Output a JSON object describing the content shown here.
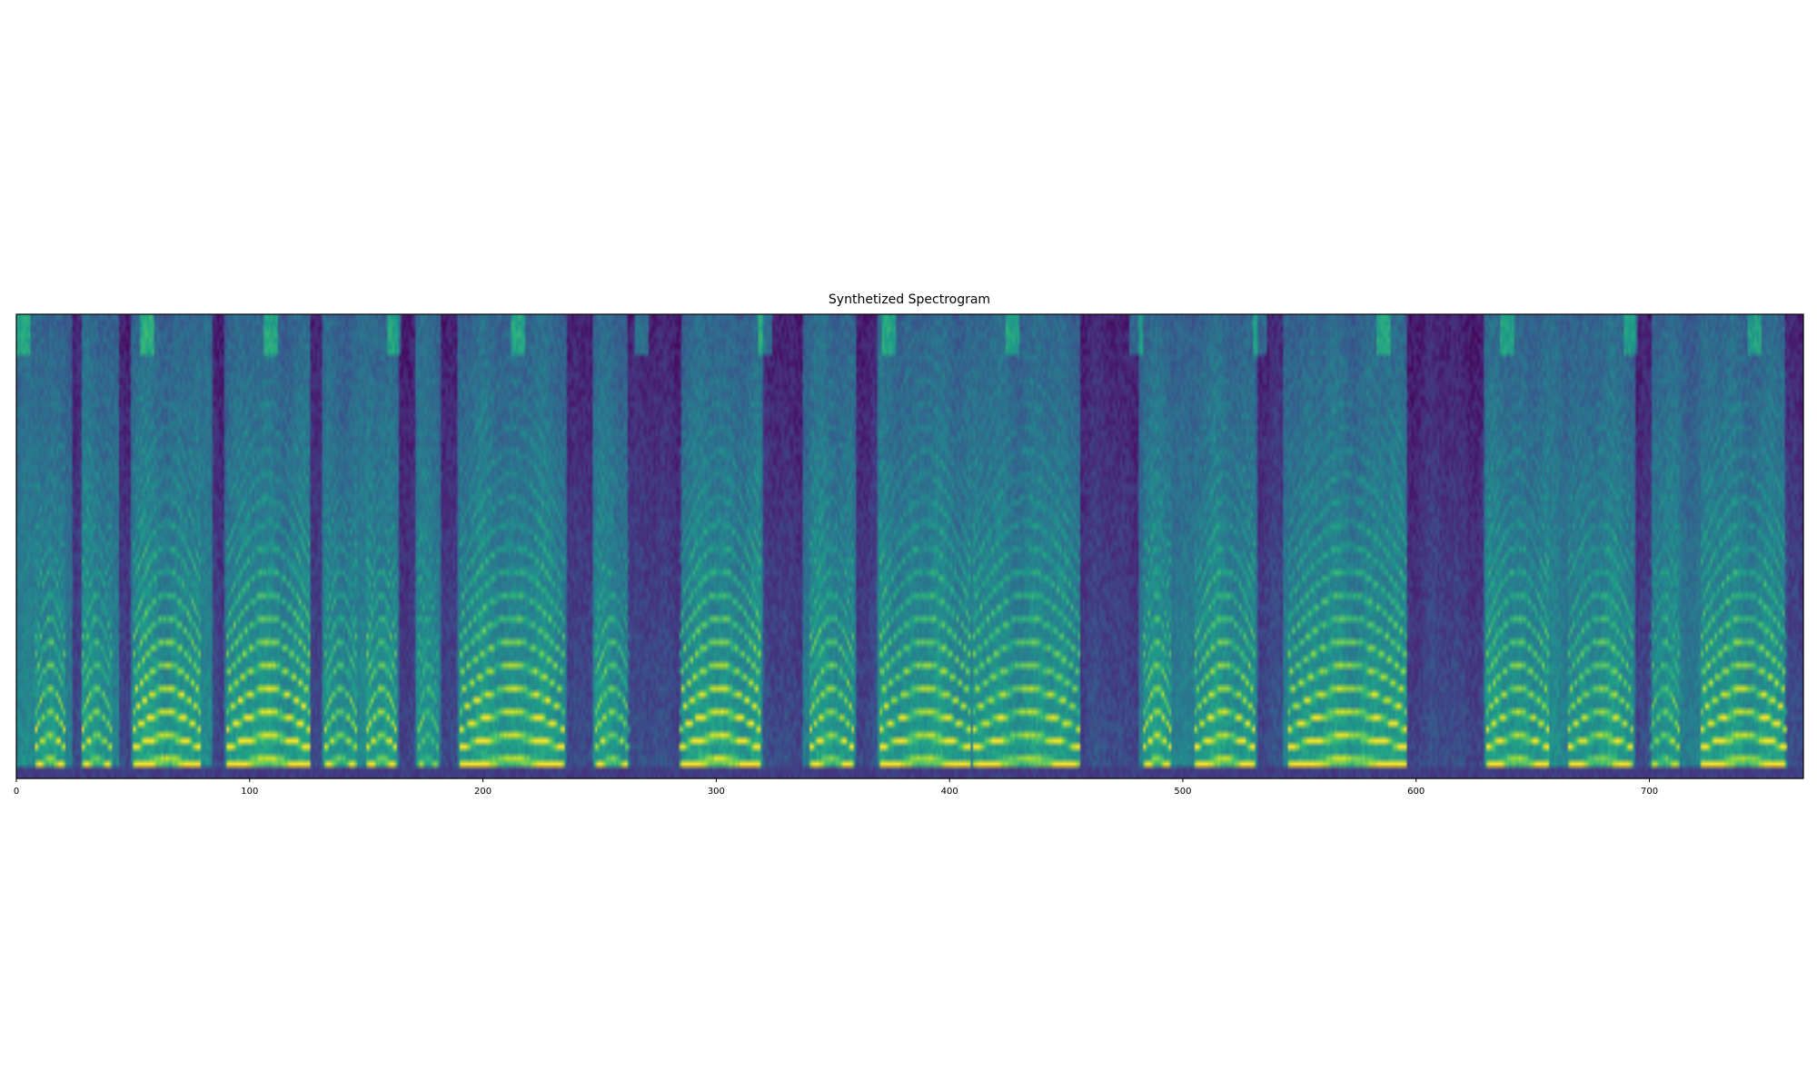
{
  "chart_data": {
    "type": "heatmap",
    "title": "Synthetized Spectrogram",
    "xlabel": "",
    "ylabel": "",
    "xlim": [
      0,
      766
    ],
    "x_ticks": [
      0,
      100,
      200,
      300,
      400,
      500,
      600,
      700
    ],
    "x_tick_labels": [
      "0",
      "100",
      "200",
      "300",
      "400",
      "500",
      "600",
      "700"
    ],
    "y_ticks_shown": false,
    "colormap": "viridis",
    "colors": {
      "low": "#440154",
      "mid": "#21918c",
      "high": "#fde725"
    },
    "frames": 766,
    "bins": 80,
    "grid": false,
    "legend": "none"
  }
}
